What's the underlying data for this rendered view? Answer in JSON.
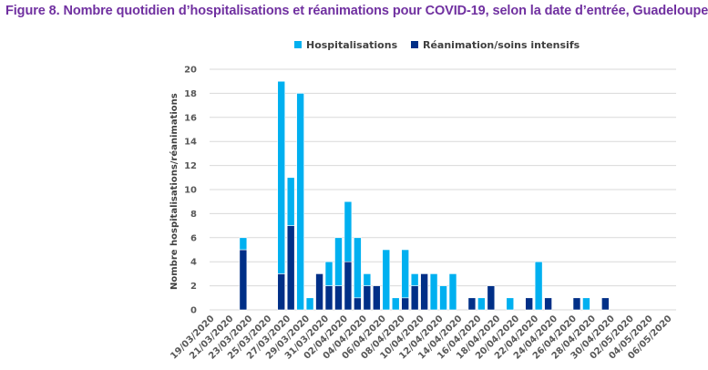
{
  "chart_data": {
    "type": "bar",
    "stacked": true,
    "title": "Figure 8. Nombre quotidien d’hospitalisations et réanimations pour COVID-19, selon la date d’entrée, Guadeloupe",
    "xlabel": "",
    "ylabel": "Nombre hospitalisations/réanimations",
    "ylim": [
      0,
      20
    ],
    "yticks": [
      0,
      2,
      4,
      6,
      8,
      10,
      12,
      14,
      16,
      18,
      20
    ],
    "grid": true,
    "legend_position": "top",
    "colors": {
      "hospitalisations": "#00B0F0",
      "reanimation": "#002F87",
      "title": "#7030A0",
      "grid": "#D9D9D9"
    },
    "dates": [
      "19/03/2020",
      "20/03/2020",
      "21/03/2020",
      "22/03/2020",
      "23/03/2020",
      "24/03/2020",
      "25/03/2020",
      "26/03/2020",
      "27/03/2020",
      "28/03/2020",
      "29/03/2020",
      "30/03/2020",
      "31/03/2020",
      "01/04/2020",
      "02/04/2020",
      "03/04/2020",
      "04/04/2020",
      "05/04/2020",
      "06/04/2020",
      "07/04/2020",
      "08/04/2020",
      "09/04/2020",
      "10/04/2020",
      "11/04/2020",
      "12/04/2020",
      "13/04/2020",
      "14/04/2020",
      "15/04/2020",
      "16/04/2020",
      "17/04/2020",
      "18/04/2020",
      "19/04/2020",
      "20/04/2020",
      "21/04/2020",
      "22/04/2020",
      "23/04/2020",
      "24/04/2020",
      "25/04/2020",
      "26/04/2020",
      "27/04/2020",
      "28/04/2020",
      "29/04/2020",
      "30/04/2020",
      "01/05/2020",
      "02/05/2020",
      "03/05/2020",
      "04/05/2020",
      "05/05/2020",
      "06/05/2020"
    ],
    "tick_labels": [
      "19/03/2020",
      "21/03/2020",
      "23/03/2020",
      "25/03/2020",
      "27/03/2020",
      "29/03/2020",
      "31/03/2020",
      "02/04/2020",
      "04/04/2020",
      "06/04/2020",
      "08/04/2020",
      "10/04/2020",
      "12/04/2020",
      "14/04/2020",
      "16/04/2020",
      "18/04/2020",
      "20/04/2020",
      "22/04/2020",
      "24/04/2020",
      "26/04/2020",
      "28/04/2020",
      "30/04/2020",
      "02/05/2020",
      "04/05/2020",
      "06/05/2020"
    ],
    "series": [
      {
        "name": "Réanimation/soins intensifs",
        "values": [
          0,
          0,
          0,
          5,
          0,
          0,
          0,
          3,
          7,
          0,
          0,
          3,
          2,
          2,
          4,
          1,
          2,
          2,
          0,
          0,
          1,
          2,
          3,
          0,
          0,
          0,
          0,
          1,
          0,
          2,
          0,
          0,
          0,
          1,
          0,
          1,
          0,
          0,
          1,
          0,
          0,
          1,
          0,
          0,
          0,
          0,
          0,
          0,
          0
        ]
      },
      {
        "name": "Hospitalisations",
        "values": [
          0,
          0,
          0,
          1,
          0,
          0,
          0,
          16,
          4,
          18,
          1,
          0,
          2,
          4,
          5,
          5,
          1,
          0,
          5,
          1,
          4,
          1,
          0,
          3,
          2,
          3,
          0,
          0,
          1,
          0,
          0,
          1,
          0,
          0,
          4,
          0,
          0,
          0,
          0,
          1,
          0,
          0,
          0,
          0,
          0,
          0,
          0,
          0,
          0
        ]
      }
    ]
  },
  "legend": {
    "items": [
      {
        "label": "Hospitalisations",
        "color": "#00B0F0"
      },
      {
        "label": "Réanimation/soins intensifs",
        "color": "#002F87"
      }
    ]
  }
}
